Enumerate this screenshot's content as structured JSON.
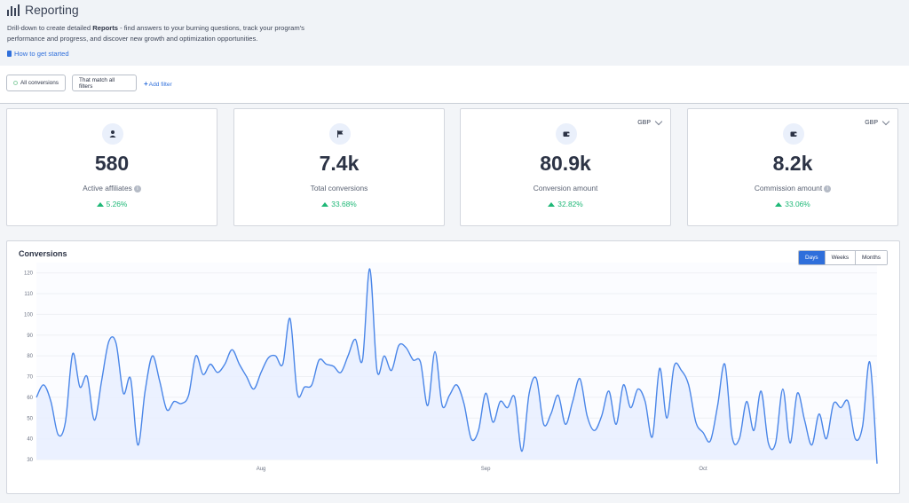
{
  "header": {
    "title": "Reporting",
    "desc_pre": "Drill-down to create detailed ",
    "desc_bold": "Reports",
    "desc_post": " - find answers to your burning questions, track your program's performance and progress, and discover new growth and optimization opportunities.",
    "howto": "How to get started"
  },
  "filters": {
    "chip1": "All conversions",
    "chip2": "That match all filters",
    "add": "Add filter"
  },
  "cards": [
    {
      "icon": "user-icon",
      "value": "580",
      "label": "Active affiliates",
      "change": "5.26%",
      "currency": ""
    },
    {
      "icon": "flag-icon",
      "value": "7.4k",
      "label": "Total conversions",
      "change": "33.68%",
      "currency": ""
    },
    {
      "icon": "wallet-icon",
      "value": "80.9k",
      "label": "Conversion amount",
      "change": "32.82%",
      "currency": "GBP"
    },
    {
      "icon": "wallet-icon",
      "value": "8.2k",
      "label": "Commission amount",
      "change": "33.06%",
      "currency": "GBP"
    }
  ],
  "colors": {
    "accent": "#2f6fdb",
    "positive": "#1fb877",
    "line": "#4a86e8",
    "fill": "#e8efff"
  },
  "chart": {
    "title": "Conversions",
    "ranges": [
      "Days",
      "Weeks",
      "Months"
    ],
    "active_range": "Days"
  },
  "chart_data": {
    "type": "area",
    "title": "Conversions",
    "ylim": [
      30,
      125
    ],
    "yticks": [
      30,
      40,
      50,
      60,
      70,
      80,
      90,
      100,
      110,
      120
    ],
    "x_labels": [
      {
        "label": "Aug",
        "index": 31
      },
      {
        "label": "Sep",
        "index": 62
      },
      {
        "label": "Oct",
        "index": 92
      }
    ],
    "values": [
      60,
      66,
      58,
      42,
      48,
      81,
      65,
      70,
      49,
      68,
      87,
      86,
      62,
      69,
      37,
      63,
      80,
      68,
      54,
      58,
      57,
      61,
      80,
      71,
      76,
      72,
      76,
      83,
      76,
      70,
      64,
      72,
      79,
      80,
      76,
      98,
      62,
      65,
      66,
      78,
      76,
      75,
      72,
      80,
      88,
      78,
      122,
      73,
      80,
      73,
      85,
      84,
      78,
      77,
      56,
      82,
      56,
      61,
      66,
      57,
      40,
      44,
      62,
      48,
      58,
      55,
      60,
      34,
      62,
      69,
      47,
      52,
      61,
      47,
      58,
      69,
      51,
      44,
      51,
      63,
      47,
      66,
      55,
      64,
      58,
      41,
      74,
      50,
      75,
      73,
      66,
      48,
      43,
      39,
      56,
      76,
      41,
      40,
      58,
      44,
      63,
      38,
      38,
      64,
      38,
      62,
      49,
      37,
      52,
      40,
      57,
      55,
      58,
      40,
      46,
      77,
      28
    ]
  }
}
